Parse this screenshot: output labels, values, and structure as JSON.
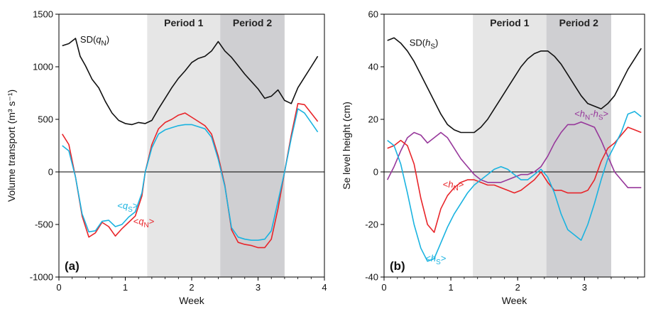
{
  "chart_data": [
    {
      "type": "line",
      "panel_label": "(a)",
      "xlabel": "Week",
      "ylabel": "Volume transport (m³ s⁻¹)",
      "xlim": [
        0,
        4
      ],
      "ylim": [
        -1000,
        1500
      ],
      "xticks": [
        0,
        1,
        2,
        3,
        4
      ],
      "yticks": [
        -1000,
        -500,
        0,
        500,
        1000,
        1500
      ],
      "zero_line": true,
      "shaded_periods": [
        {
          "label": "Period 1",
          "x0": 1.33,
          "x1": 2.43,
          "color": "#e6e6e6"
        },
        {
          "label": "Period 2",
          "x0": 2.43,
          "x1": 3.4,
          "color": "#cfcfd2"
        }
      ],
      "series": [
        {
          "name": "SD(qN)",
          "color": "#111111",
          "label": {
            "pre": "SD(",
            "italic": "q",
            "sub": "N",
            "post": ")",
            "x": 0.32,
            "y": 1230
          },
          "x": [
            0.05,
            0.15,
            0.25,
            0.32,
            0.4,
            0.5,
            0.6,
            0.7,
            0.8,
            0.9,
            1.0,
            1.1,
            1.2,
            1.3,
            1.4,
            1.5,
            1.6,
            1.7,
            1.8,
            1.9,
            2.0,
            2.1,
            2.2,
            2.3,
            2.4,
            2.5,
            2.6,
            2.7,
            2.8,
            2.9,
            3.0,
            3.1,
            3.2,
            3.3,
            3.4,
            3.5,
            3.6,
            3.7,
            3.8,
            3.9
          ],
          "y": [
            1200,
            1220,
            1270,
            1100,
            1010,
            880,
            800,
            670,
            560,
            490,
            460,
            450,
            470,
            460,
            490,
            600,
            700,
            800,
            890,
            960,
            1040,
            1080,
            1100,
            1150,
            1240,
            1150,
            1090,
            1010,
            930,
            860,
            790,
            700,
            720,
            780,
            680,
            650,
            800,
            900,
            1000,
            1100
          ]
        },
        {
          "name": "<qN>",
          "color": "#e8252a",
          "label": {
            "pre": "<",
            "italic": "q",
            "sub": "N",
            "post": ">",
            "x": 1.12,
            "y": -500
          },
          "x": [
            0.05,
            0.15,
            0.25,
            0.35,
            0.45,
            0.55,
            0.65,
            0.75,
            0.85,
            0.95,
            1.05,
            1.15,
            1.25,
            1.3,
            1.4,
            1.5,
            1.6,
            1.7,
            1.8,
            1.9,
            2.0,
            2.1,
            2.2,
            2.3,
            2.4,
            2.5,
            2.6,
            2.7,
            2.8,
            2.9,
            3.0,
            3.1,
            3.2,
            3.3,
            3.4,
            3.5,
            3.6,
            3.7,
            3.8,
            3.9
          ],
          "y": [
            360,
            260,
            -50,
            -420,
            -620,
            -580,
            -480,
            -520,
            -610,
            -540,
            -480,
            -420,
            -230,
            0,
            260,
            410,
            470,
            500,
            540,
            560,
            520,
            480,
            440,
            360,
            150,
            -130,
            -550,
            -670,
            -690,
            -700,
            -720,
            -720,
            -640,
            -350,
            0,
            350,
            650,
            640,
            560,
            480
          ]
        },
        {
          "name": "<qS>",
          "color": "#1ab3e0",
          "label": {
            "pre": "<",
            "italic": "q",
            "sub": "S",
            "post": ">",
            "x": 0.88,
            "y": -350
          },
          "x": [
            0.05,
            0.15,
            0.25,
            0.35,
            0.45,
            0.55,
            0.65,
            0.75,
            0.85,
            0.95,
            1.05,
            1.15,
            1.25,
            1.3,
            1.4,
            1.5,
            1.6,
            1.7,
            1.8,
            1.9,
            2.0,
            2.1,
            2.2,
            2.3,
            2.4,
            2.5,
            2.6,
            2.7,
            2.8,
            2.9,
            3.0,
            3.1,
            3.2,
            3.3,
            3.4,
            3.5,
            3.6,
            3.7,
            3.8,
            3.9
          ],
          "y": [
            250,
            200,
            -50,
            -400,
            -570,
            -560,
            -470,
            -460,
            -520,
            -500,
            -430,
            -380,
            -200,
            0,
            230,
            360,
            400,
            420,
            440,
            450,
            450,
            430,
            410,
            330,
            120,
            -140,
            -530,
            -620,
            -640,
            -650,
            -650,
            -640,
            -560,
            -280,
            0,
            320,
            600,
            560,
            470,
            380
          ]
        }
      ]
    },
    {
      "type": "line",
      "panel_label": "(b)",
      "xlabel": "Week",
      "ylabel": "Se level height (cm)",
      "xlim": [
        0,
        3.9
      ],
      "ylim": [
        -40,
        60
      ],
      "xticks": [
        0,
        1,
        2,
        3
      ],
      "yticks": [
        -40,
        -20,
        0,
        20,
        40,
        60
      ],
      "zero_line": true,
      "shaded_periods": [
        {
          "label": "Period 1",
          "x0": 1.33,
          "x1": 2.43,
          "color": "#e6e6e6"
        },
        {
          "label": "Period 2",
          "x0": 2.43,
          "x1": 3.4,
          "color": "#cfcfd2"
        }
      ],
      "series": [
        {
          "name": "SD(hS)",
          "color": "#111111",
          "label": {
            "pre": "SD(",
            "italic": "h",
            "sub": "S",
            "post": ")",
            "x": 0.38,
            "y": 48
          },
          "x": [
            0.05,
            0.15,
            0.25,
            0.35,
            0.45,
            0.55,
            0.65,
            0.75,
            0.85,
            0.95,
            1.05,
            1.15,
            1.25,
            1.35,
            1.45,
            1.55,
            1.65,
            1.75,
            1.85,
            1.95,
            2.05,
            2.15,
            2.25,
            2.35,
            2.45,
            2.55,
            2.65,
            2.75,
            2.85,
            2.95,
            3.05,
            3.15,
            3.25,
            3.35,
            3.45,
            3.55,
            3.65,
            3.75,
            3.85
          ],
          "y": [
            50,
            51,
            49,
            46,
            42,
            37,
            32,
            27,
            22,
            18,
            16,
            15,
            15,
            15,
            17,
            20,
            24,
            28,
            32,
            36,
            40,
            43,
            45,
            46,
            46,
            44,
            41,
            37,
            33,
            29,
            26,
            25,
            24,
            26,
            29,
            34,
            39,
            43,
            47
          ]
        },
        {
          "name": "<hN-hS>",
          "color": "#97389b",
          "label": {
            "pre": "<",
            "italic": "h",
            "sub": "N",
            "mid": "-",
            "italic2": "h",
            "sub2": "S",
            "post": ">",
            "x": 2.85,
            "y": 21
          },
          "x": [
            0.05,
            0.15,
            0.25,
            0.35,
            0.45,
            0.55,
            0.65,
            0.75,
            0.85,
            0.95,
            1.05,
            1.15,
            1.25,
            1.35,
            1.45,
            1.55,
            1.65,
            1.75,
            1.85,
            1.95,
            2.05,
            2.15,
            2.25,
            2.35,
            2.45,
            2.55,
            2.65,
            2.75,
            2.85,
            2.95,
            3.05,
            3.15,
            3.25,
            3.35,
            3.45,
            3.55,
            3.65,
            3.75,
            3.85
          ],
          "y": [
            -3,
            2,
            8,
            13,
            15,
            14,
            11,
            13,
            15,
            13,
            9,
            5,
            2,
            -1,
            -3,
            -4,
            -4,
            -4,
            -3,
            -2,
            -1,
            -1,
            0,
            2,
            6,
            11,
            15,
            18,
            18,
            19,
            18,
            17,
            12,
            6,
            0,
            -3,
            -6,
            -6,
            -6
          ]
        },
        {
          "name": "<hN>",
          "color": "#e8252a",
          "label": {
            "pre": "<",
            "italic": "h",
            "sub": "N",
            "post": ">",
            "x": 0.88,
            "y": -6
          },
          "x": [
            0.05,
            0.15,
            0.25,
            0.35,
            0.45,
            0.55,
            0.65,
            0.75,
            0.85,
            0.95,
            1.05,
            1.15,
            1.25,
            1.35,
            1.45,
            1.55,
            1.65,
            1.75,
            1.85,
            1.95,
            2.05,
            2.15,
            2.25,
            2.35,
            2.45,
            2.55,
            2.65,
            2.75,
            2.85,
            2.95,
            3.05,
            3.15,
            3.25,
            3.35,
            3.45,
            3.55,
            3.65,
            3.75,
            3.85
          ],
          "y": [
            9,
            10,
            12,
            10,
            3,
            -10,
            -20,
            -23,
            -14,
            -9,
            -6,
            -4,
            -3,
            -3,
            -4,
            -5,
            -5,
            -6,
            -7,
            -8,
            -7,
            -5,
            -3,
            0,
            -4,
            -7,
            -7,
            -8,
            -8,
            -8,
            -7,
            -3,
            4,
            9,
            11,
            14,
            17,
            16,
            15
          ]
        },
        {
          "name": "<hS>",
          "color": "#1ab3e0",
          "label": {
            "pre": "<",
            "italic": "h",
            "sub": "S",
            "post": ">",
            "x": 0.62,
            "y": -34
          },
          "x": [
            0.05,
            0.15,
            0.25,
            0.35,
            0.45,
            0.55,
            0.65,
            0.75,
            0.85,
            0.95,
            1.05,
            1.15,
            1.25,
            1.35,
            1.45,
            1.55,
            1.65,
            1.75,
            1.85,
            1.95,
            2.05,
            2.15,
            2.25,
            2.35,
            2.45,
            2.55,
            2.65,
            2.75,
            2.85,
            2.95,
            3.05,
            3.15,
            3.25,
            3.35,
            3.45,
            3.55,
            3.65,
            3.75,
            3.85
          ],
          "y": [
            12,
            10,
            3,
            -8,
            -20,
            -29,
            -34,
            -33,
            -27,
            -21,
            -16,
            -12,
            -8,
            -5,
            -3,
            -1,
            1,
            2,
            1,
            -1,
            -3,
            -3,
            -1,
            1,
            -2,
            -8,
            -16,
            -22,
            -24,
            -26,
            -20,
            -12,
            -3,
            5,
            10,
            15,
            22,
            23,
            21
          ]
        }
      ]
    }
  ]
}
